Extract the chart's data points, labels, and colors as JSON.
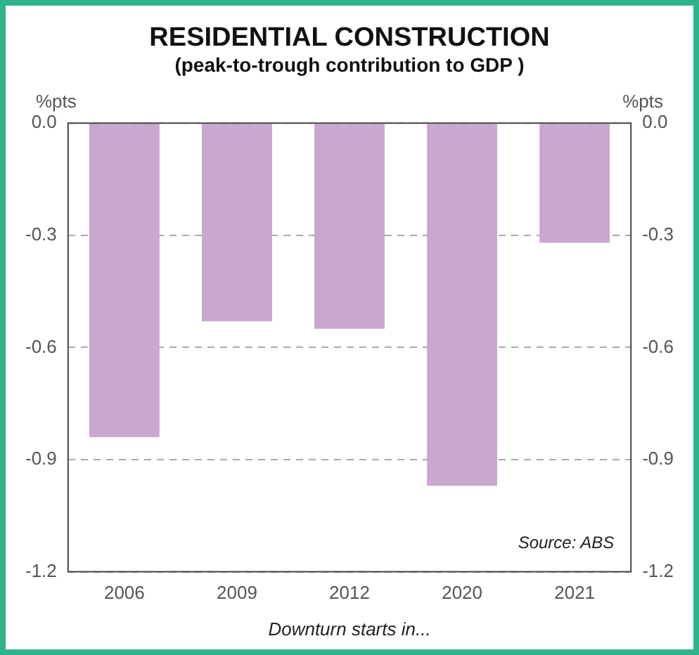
{
  "chart_data": {
    "type": "bar",
    "title": "RESIDENTIAL CONSTRUCTION",
    "subtitle": "(peak-to-trough contribution to GDP )",
    "xlabel": "Downturn starts in...",
    "ylabel": "%pts",
    "y2label": "%pts",
    "categories": [
      "2006",
      "2009",
      "2012",
      "2020",
      "2021"
    ],
    "values": [
      -0.84,
      -0.53,
      -0.55,
      -0.97,
      -0.32
    ],
    "color": "#c9a7cf",
    "ylim": [
      -1.2,
      0
    ],
    "yticks": [
      {
        "value": 0,
        "label": "0.0"
      },
      -0.3,
      -0.6,
      -0.9,
      -1.2
    ],
    "y2lim": [
      -1.2,
      0
    ],
    "y2ticks": [
      {
        "value": 0,
        "label": "0.0"
      },
      -0.3,
      -0.6,
      -0.9,
      -1.2
    ],
    "grid": "y",
    "legend": false,
    "annotations": [
      "Source: ABS"
    ]
  }
}
